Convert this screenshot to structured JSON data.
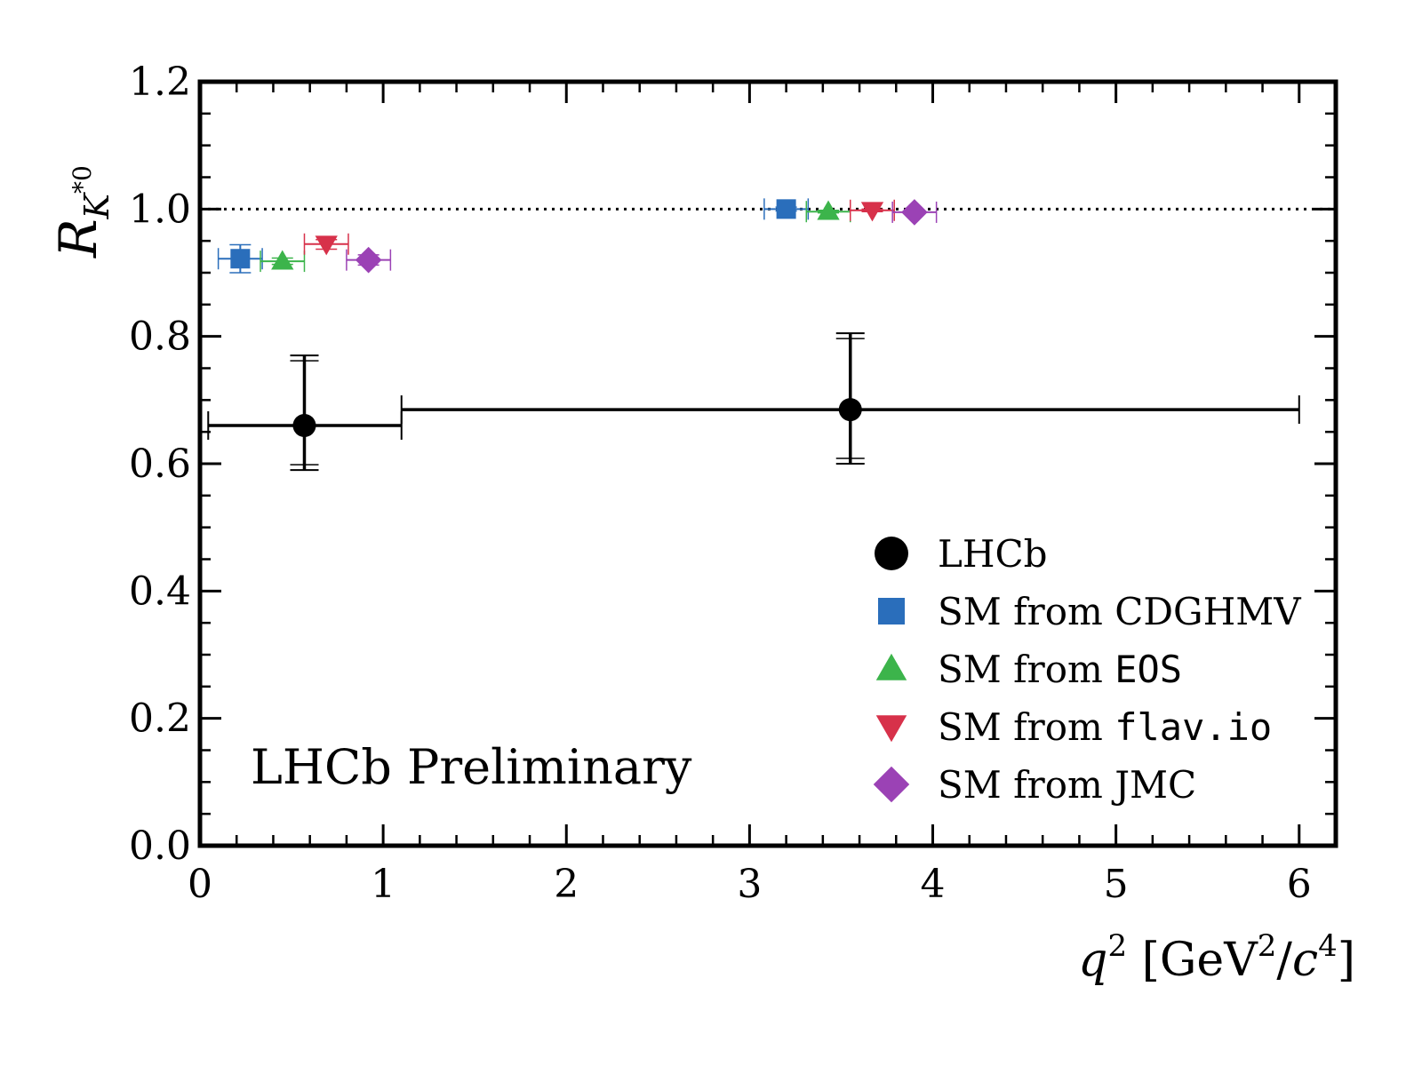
{
  "chart_data": {
    "type": "scatter",
    "xlabel": {
      "var": "q",
      "sup": "2",
      "unit_open": " [GeV",
      "unit_sup1": "2",
      "unit_mid": "/",
      "unit_var": "c",
      "unit_sup2": "4",
      "unit_close": "]"
    },
    "ylabel": {
      "main": "R",
      "sub": "K",
      "subsup": "*0"
    },
    "xlim": [
      0,
      6.2
    ],
    "ylim": [
      0.0,
      1.2
    ],
    "x_ticks": [
      "0",
      "1",
      "2",
      "3",
      "4",
      "5",
      "6"
    ],
    "y_ticks": [
      "0.0",
      "0.2",
      "0.4",
      "0.6",
      "0.8",
      "1.0",
      "1.2"
    ],
    "reference_line": {
      "y": 1.0,
      "style": "dotted"
    },
    "annotation": "LHCb Preliminary",
    "legend_position": "bottom-right",
    "series": [
      {
        "name": "LHCb",
        "marker": "circle",
        "color": "#000000",
        "points": [
          {
            "x": 0.57,
            "y": 0.66,
            "xlo": 0.045,
            "xhi": 1.1,
            "ylo": 0.59,
            "yhi": 0.77
          },
          {
            "x": 3.55,
            "y": 0.685,
            "xlo": 1.1,
            "xhi": 6.0,
            "ylo": 0.6,
            "yhi": 0.805
          }
        ]
      },
      {
        "name_prefix": "SM from ",
        "name_suffix": "CDGHMV",
        "mono": false,
        "marker": "square",
        "color": "#2a6ebb",
        "points": [
          {
            "x": 0.22,
            "y": 0.922,
            "xlo": 0.1,
            "xhi": 0.34,
            "ylo": 0.9,
            "yhi": 0.944
          },
          {
            "x": 3.2,
            "y": 1.0,
            "xlo": 3.08,
            "xhi": 3.32,
            "ylo": 0.997,
            "yhi": 1.003
          }
        ]
      },
      {
        "name_prefix": "SM from ",
        "name_suffix": "EOS",
        "mono": true,
        "marker": "triangle-up",
        "color": "#3cb44b",
        "points": [
          {
            "x": 0.45,
            "y": 0.918,
            "xlo": 0.33,
            "xhi": 0.57,
            "ylo": 0.913,
            "yhi": 0.923
          },
          {
            "x": 3.43,
            "y": 0.996,
            "xlo": 3.31,
            "xhi": 3.55,
            "ylo": 0.994,
            "yhi": 0.998
          }
        ]
      },
      {
        "name_prefix": "SM from ",
        "name_suffix": "flav.io",
        "mono": true,
        "marker": "triangle-down",
        "color": "#d7314a",
        "points": [
          {
            "x": 0.69,
            "y": 0.945,
            "xlo": 0.57,
            "xhi": 0.81,
            "ylo": 0.937,
            "yhi": 0.952
          },
          {
            "x": 3.67,
            "y": 0.998,
            "xlo": 3.55,
            "xhi": 3.79,
            "ylo": 0.996,
            "yhi": 1.0
          }
        ]
      },
      {
        "name_prefix": "SM from ",
        "name_suffix": "JMC",
        "mono": false,
        "marker": "diamond",
        "color": "#9b42b5",
        "points": [
          {
            "x": 0.92,
            "y": 0.92,
            "xlo": 0.8,
            "xhi": 1.04,
            "ylo": 0.912,
            "yhi": 0.928
          },
          {
            "x": 3.9,
            "y": 0.995,
            "xlo": 3.78,
            "xhi": 4.02,
            "ylo": 0.993,
            "yhi": 0.997
          }
        ]
      }
    ]
  }
}
